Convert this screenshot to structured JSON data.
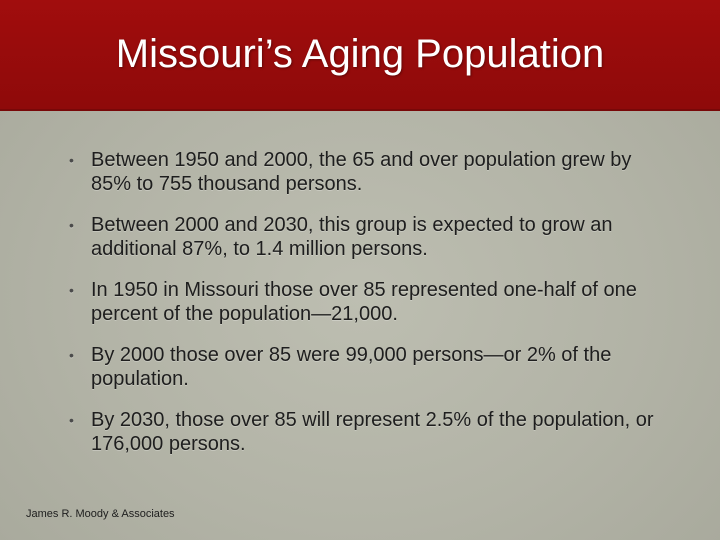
{
  "slide": {
    "title": "Missouri’s Aging Population",
    "bullets": [
      "Between 1950 and 2000, the 65 and over population grew by 85% to 755 thousand persons.",
      "Between 2000 and 2030, this group is expected to grow an additional 87%, to 1.4 million persons.",
      "In 1950 in Missouri those over 85 represented one-half of one percent of the population—21,000.",
      "By 2000 those over 85 were 99,000 persons—or 2% of the population.",
      "By 2030, those over 85 will represent 2.5% of the population, or 176,000 persons."
    ],
    "bullet_symbol": "•",
    "footer": "James R. Moody & Associates"
  },
  "colors": {
    "title_bar": "#a10d0d",
    "title_text": "#ffffff",
    "background": "#b4b5a8",
    "body_text": "#1e1e1e"
  }
}
